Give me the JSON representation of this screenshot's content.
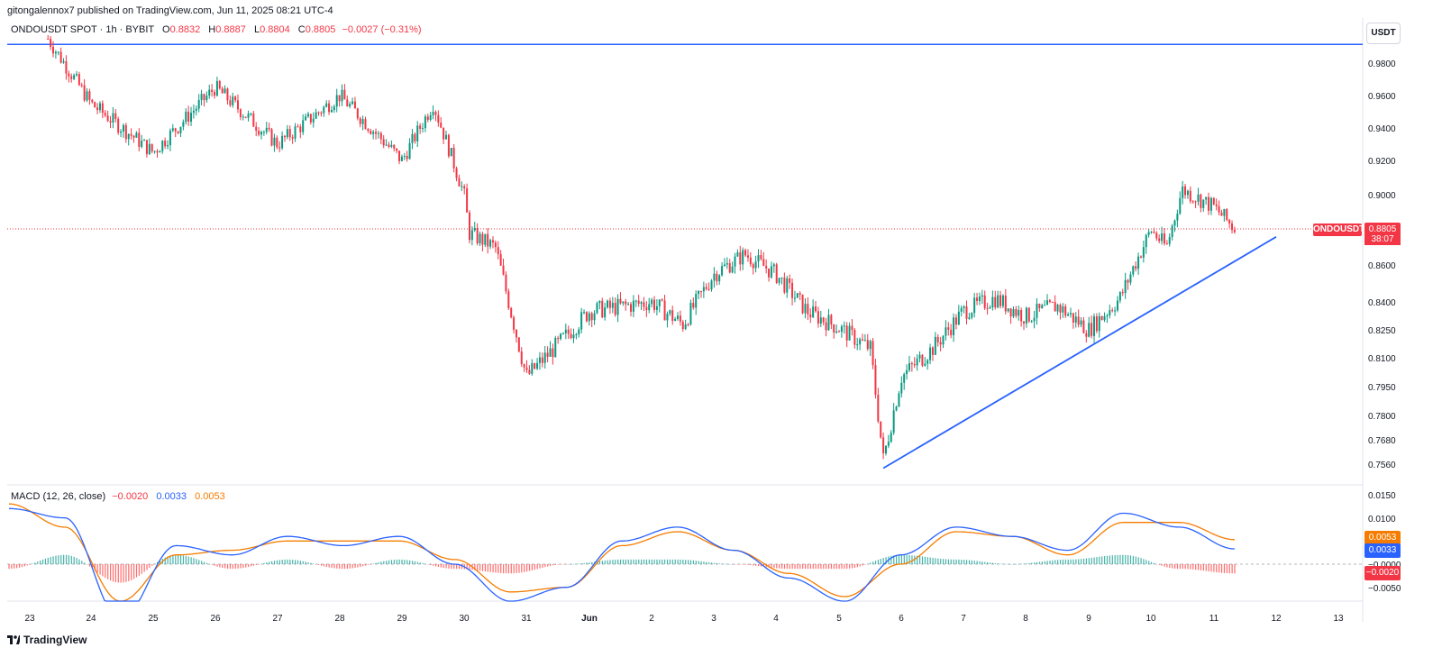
{
  "header": {
    "published": "gitongalennox7 published on TradingView.com, Jun 11, 2025 08:21 UTC-4",
    "symbol": "ONDOUSDT SPOT · 1h · BYBIT",
    "o_label": "O",
    "o_value": "0.8832",
    "h_label": "H",
    "h_value": "0.8887",
    "l_label": "L",
    "l_value": "0.8804",
    "c_label": "C",
    "c_value": "0.8805",
    "change": "−0.0027 (−0.31%)"
  },
  "currency_button": "USDT",
  "last_price": {
    "symbol": "ONDOUSDT",
    "price": "0.8805",
    "countdown": "38:07"
  },
  "macd_legend": {
    "title": "MACD (12, 26, close)",
    "hist": "−0.0020",
    "macd": "0.0033",
    "signal": "0.0053",
    "hist_label": "−0.0020",
    "macd_label": "0.0033",
    "signal_label": "0.0053"
  },
  "watermark": "TradingView",
  "colors": {
    "up": "#089981",
    "down": "#f23645",
    "macd": "#2962ff",
    "signal": "#f57c00",
    "trendline": "#2962ff"
  },
  "chart_data": [
    {
      "type": "candlestick",
      "price_ticks": [
        "0.9800",
        "0.9600",
        "0.9400",
        "0.9200",
        "0.9000",
        "0.8600",
        "0.8400",
        "0.8250",
        "0.8100",
        "0.7950",
        "0.7800",
        "0.7680",
        "0.7560"
      ],
      "x_ticks": [
        "23",
        "24",
        "25",
        "26",
        "27",
        "28",
        "29",
        "30",
        "31",
        "Jun",
        "2",
        "3",
        "4",
        "5",
        "6",
        "7",
        "8",
        "9",
        "10",
        "11",
        "12",
        "13"
      ],
      "horizontal_line": 0.9915,
      "last_close": 0.8805,
      "trendline": [
        {
          "date": "Jun 5 17:00",
          "price": 0.754
        },
        {
          "date": "Jun 12 00:00",
          "price": 0.876
        }
      ],
      "key_points": [
        {
          "date": "May 23 07:00",
          "price": 0.995
        },
        {
          "date": "May 23",
          "price": 0.94
        },
        {
          "date": "May 24",
          "price": 0.955
        },
        {
          "date": "May 25",
          "price": 0.925
        },
        {
          "date": "May 26",
          "price": 0.965
        },
        {
          "date": "May 27",
          "price": 0.93
        },
        {
          "date": "May 28",
          "price": 0.96
        },
        {
          "date": "May 29",
          "price": 0.92
        },
        {
          "date": "May 29 12:00",
          "price": 0.955
        },
        {
          "date": "May 30 00:00",
          "price": 0.9
        },
        {
          "date": "May 30 02:00",
          "price": 0.878
        },
        {
          "date": "May 30 12:00",
          "price": 0.87
        },
        {
          "date": "May 31 00:00",
          "price": 0.8
        },
        {
          "date": "May 31 12:00",
          "price": 0.817
        },
        {
          "date": "Jun 1",
          "price": 0.835
        },
        {
          "date": "Jun 2",
          "price": 0.84
        },
        {
          "date": "Jun 2 12:00",
          "price": 0.828
        },
        {
          "date": "Jun 3 00:00",
          "price": 0.855
        },
        {
          "date": "Jun 3 12:00",
          "price": 0.866
        },
        {
          "date": "Jun 4",
          "price": 0.855
        },
        {
          "date": "Jun 4 12:00",
          "price": 0.835
        },
        {
          "date": "Jun 5",
          "price": 0.826
        },
        {
          "date": "Jun 5 12:00",
          "price": 0.815
        },
        {
          "date": "Jun 5 17:00",
          "price": 0.758
        },
        {
          "date": "Jun 6 00:00",
          "price": 0.8
        },
        {
          "date": "Jun 6 12:00",
          "price": 0.815
        },
        {
          "date": "Jun 7",
          "price": 0.835
        },
        {
          "date": "Jun 7 12:00",
          "price": 0.842
        },
        {
          "date": "Jun 8",
          "price": 0.832
        },
        {
          "date": "Jun 8 12:00",
          "price": 0.838
        },
        {
          "date": "Jun 9 00:00",
          "price": 0.825
        },
        {
          "date": "Jun 9 12:00",
          "price": 0.842
        },
        {
          "date": "Jun 10 00:00",
          "price": 0.88
        },
        {
          "date": "Jun 10 06:00",
          "price": 0.87
        },
        {
          "date": "Jun 10 12:00",
          "price": 0.903
        },
        {
          "date": "Jun 11 00:00",
          "price": 0.893
        },
        {
          "date": "Jun 11 08:00",
          "price": 0.8805
        }
      ]
    },
    {
      "type": "line",
      "title": "MACD (12, 26, close)",
      "y_ticks": [
        "0.0150",
        "0.0100",
        "−0.0000",
        "−0.0050"
      ],
      "series": [
        {
          "name": "MACD",
          "values": [
            0.012,
            0.01,
            -0.012,
            0.004,
            0.002,
            0.006,
            0.004,
            0.006,
            0.0,
            -0.008,
            -0.005,
            0.005,
            0.008,
            0.003,
            -0.003,
            -0.008,
            0.002,
            0.008,
            0.006,
            0.003,
            0.011,
            0.008,
            0.0033
          ]
        },
        {
          "name": "Signal",
          "values": [
            0.013,
            0.008,
            -0.008,
            0.002,
            0.003,
            0.005,
            0.005,
            0.005,
            0.001,
            -0.006,
            -0.005,
            0.004,
            0.007,
            0.003,
            -0.002,
            -0.007,
            0.0,
            0.007,
            0.006,
            0.002,
            0.009,
            0.009,
            0.0053
          ]
        }
      ]
    }
  ]
}
